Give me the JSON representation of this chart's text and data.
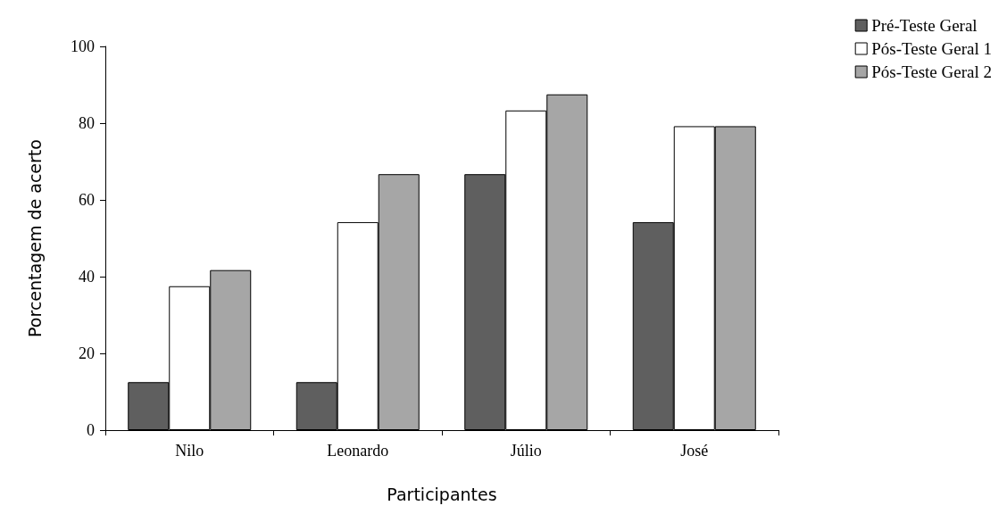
{
  "chart_data": {
    "type": "bar",
    "xlabel": "Participantes",
    "ylabel": "Porcentagem de acerto",
    "categories": [
      "Nilo",
      "Leonardo",
      "Júlio",
      "José"
    ],
    "series": [
      {
        "name": "Pré-Teste Geral",
        "color": "#5f5f5f",
        "values": [
          12.5,
          12.5,
          66.7,
          54.2
        ]
      },
      {
        "name": "Pós-Teste Geral 1",
        "color": "#ffffff",
        "values": [
          37.5,
          54.2,
          83.3,
          79.2
        ]
      },
      {
        "name": "Pós-Teste Geral 2",
        "color": "#a6a6a6",
        "values": [
          41.7,
          66.7,
          87.5,
          79.2
        ]
      }
    ],
    "ylim": [
      0,
      100
    ],
    "yticks": [
      0,
      20,
      40,
      60,
      80,
      100
    ],
    "grid": false,
    "legend": "top right"
  }
}
